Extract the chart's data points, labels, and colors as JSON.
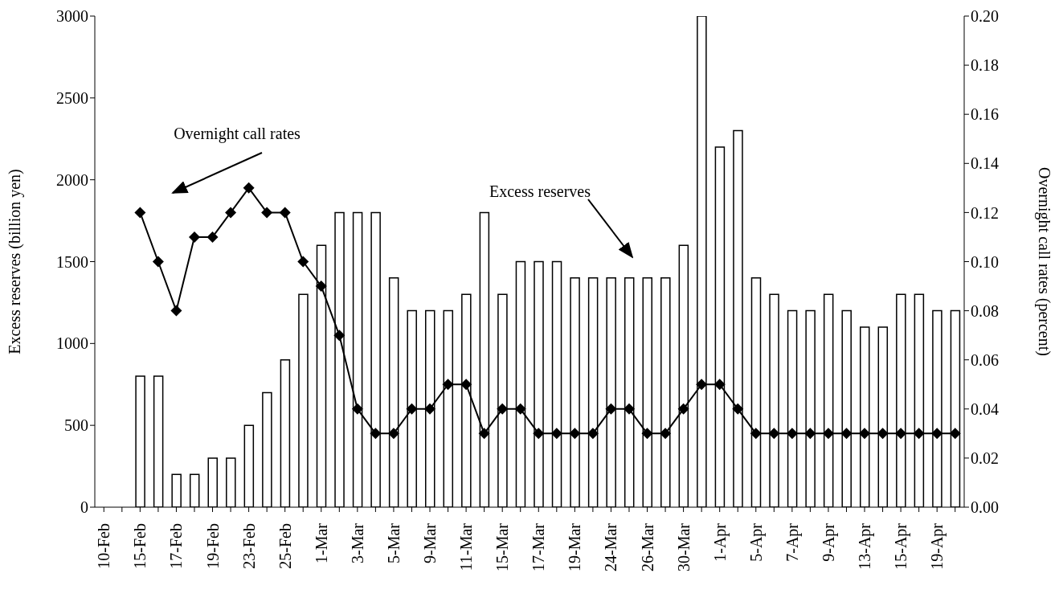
{
  "chart_data": {
    "type": "bar",
    "ylabel": "Excess reserves (billion yen)",
    "y2label": "Overnight call rates (percent)",
    "categories": [
      "10-Feb",
      null,
      "15-Feb",
      null,
      "17-Feb",
      null,
      "19-Feb",
      null,
      "23-Feb",
      null,
      "25-Feb",
      null,
      "1-Mar",
      null,
      "3-Mar",
      null,
      "5-Mar",
      null,
      "9-Mar",
      null,
      "11-Mar",
      null,
      "15-Mar",
      null,
      "17-Mar",
      null,
      "19-Mar",
      null,
      "24-Mar",
      null,
      "26-Mar",
      null,
      "30-Mar",
      null,
      "1-Apr",
      null,
      "5-Apr",
      null,
      "7-Apr",
      null,
      "9-Apr",
      null,
      "13-Apr",
      null,
      "15-Apr",
      null,
      "19-Apr",
      null
    ],
    "series": [
      {
        "name": "Excess reserves",
        "color": "#ffffff",
        "values": [
          null,
          null,
          800,
          800,
          200,
          200,
          300,
          300,
          500,
          700,
          900,
          1300,
          1600,
          1800,
          1800,
          1800,
          1400,
          1200,
          1200,
          1200,
          1300,
          1800,
          1300,
          1500,
          1500,
          1500,
          1400,
          1400,
          1400,
          1400,
          1400,
          1400,
          1600,
          3000,
          2200,
          2300,
          1400,
          1300,
          1200,
          1200,
          1300,
          1200,
          1100,
          1100,
          1300,
          1300,
          1200,
          1200
        ]
      },
      {
        "type": "line",
        "name": "Overnight call rates",
        "color": "#000000",
        "axis": "y2",
        "marker": "diamond",
        "line_style": "solid",
        "values": [
          null,
          null,
          0.12,
          0.1,
          0.08,
          0.11,
          0.11,
          0.12,
          0.13,
          0.12,
          0.12,
          0.1,
          0.09,
          0.07,
          0.04,
          0.03,
          0.03,
          0.04,
          0.04,
          0.05,
          0.05,
          0.03,
          0.04,
          0.04,
          0.03,
          0.03,
          0.03,
          0.03,
          0.04,
          0.04,
          0.03,
          0.03,
          0.04,
          0.05,
          0.05,
          0.04,
          0.03,
          0.03,
          0.03,
          0.03,
          0.03,
          0.03,
          0.03,
          0.03,
          0.03,
          0.03,
          0.03,
          0.03
        ]
      }
    ],
    "ylim": [
      0,
      3000
    ],
    "yticks": [
      0,
      500,
      1000,
      1500,
      2000,
      2500,
      3000
    ],
    "y2lim": [
      0,
      0.2
    ],
    "y2ticks": [
      {
        "value": 0,
        "label": "0.00"
      },
      {
        "value": 0.02,
        "label": "0.02"
      },
      {
        "value": 0.04,
        "label": "0.04"
      },
      {
        "value": 0.06,
        "label": "0.06"
      },
      {
        "value": 0.08,
        "label": "0.08"
      },
      {
        "value": 0.1,
        "label": "0.10"
      },
      {
        "value": 0.12,
        "label": "0.12"
      },
      {
        "value": 0.14,
        "label": "0.14"
      },
      {
        "value": 0.16,
        "label": "0.16"
      },
      {
        "value": 0.18,
        "label": "0.18"
      },
      {
        "value": 0.2,
        "label": "0.20"
      }
    ],
    "grid": false,
    "legend": false
  }
}
